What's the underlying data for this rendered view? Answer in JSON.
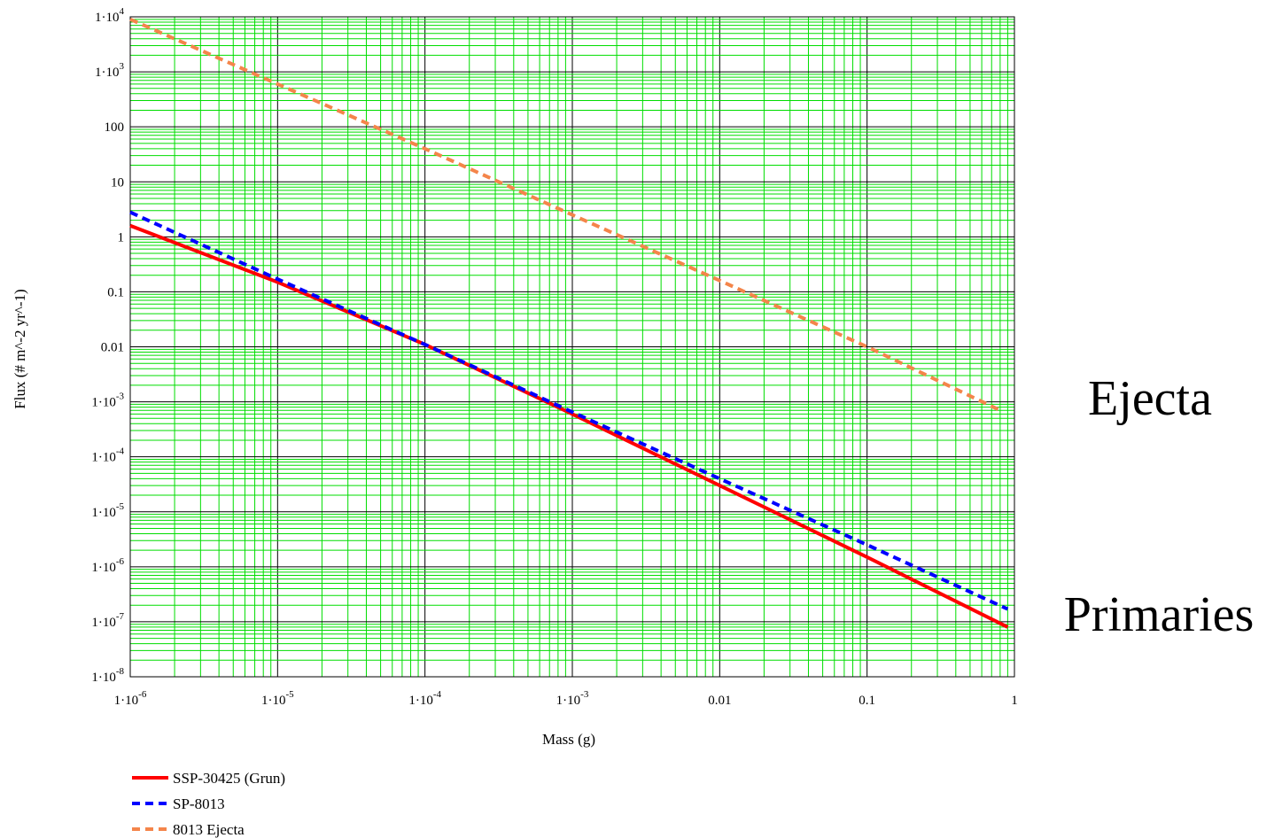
{
  "chart_data": {
    "type": "line",
    "xlabel": "Mass (g)",
    "ylabel": "Flux (# m^-2 yr^-1)",
    "xscale": "log",
    "yscale": "log",
    "xlim": [
      1e-06,
      1
    ],
    "ylim": [
      1e-08,
      10000.0
    ],
    "grid": true,
    "x_ticks": [
      {
        "base": "1·10",
        "exp": "-6",
        "text": ""
      },
      {
        "base": "1·10",
        "exp": "-5",
        "text": ""
      },
      {
        "base": "1·10",
        "exp": "-4",
        "text": ""
      },
      {
        "base": "1·10",
        "exp": "-3",
        "text": ""
      },
      {
        "base": "",
        "exp": "",
        "text": "0.01"
      },
      {
        "base": "",
        "exp": "",
        "text": "0.1"
      },
      {
        "base": "",
        "exp": "",
        "text": "1"
      }
    ],
    "y_ticks": [
      {
        "base": "1·10",
        "exp": "4",
        "text": ""
      },
      {
        "base": "1·10",
        "exp": "3",
        "text": ""
      },
      {
        "base": "",
        "exp": "",
        "text": "100"
      },
      {
        "base": "",
        "exp": "",
        "text": "10"
      },
      {
        "base": "",
        "exp": "",
        "text": "1"
      },
      {
        "base": "",
        "exp": "",
        "text": "0.1"
      },
      {
        "base": "",
        "exp": "",
        "text": "0.01"
      },
      {
        "base": "1·10",
        "exp": "-3",
        "text": ""
      },
      {
        "base": "1·10",
        "exp": "-4",
        "text": ""
      },
      {
        "base": "1·10",
        "exp": "-5",
        "text": ""
      },
      {
        "base": "1·10",
        "exp": "-6",
        "text": ""
      },
      {
        "base": "1·10",
        "exp": "-7",
        "text": ""
      },
      {
        "base": "1·10",
        "exp": "-8",
        "text": ""
      }
    ],
    "series": [
      {
        "name": "SSP-30425 (Grun)",
        "color": "#ff0000",
        "style": "solid",
        "x": [
          1e-06,
          1e-05,
          0.0001,
          0.001,
          0.01,
          0.1,
          0.9
        ],
        "y": [
          1.6,
          0.15,
          0.011,
          0.0006,
          3e-05,
          1.5e-06,
          8e-08
        ]
      },
      {
        "name": "SP-8013",
        "color": "#0000ff",
        "style": "dashed",
        "x": [
          1e-06,
          1e-05,
          0.0001,
          0.001,
          0.01,
          0.1,
          0.9
        ],
        "y": [
          2.8,
          0.17,
          0.011,
          0.00065,
          4e-05,
          2.5e-06,
          1.7e-07
        ]
      },
      {
        "name": "8013 Ejecta",
        "color": "#f4854a",
        "style": "dashed",
        "x": [
          1e-06,
          1e-05,
          0.0001,
          0.001,
          0.01,
          0.1,
          0.8
        ],
        "y": [
          9000,
          600,
          40,
          2.5,
          0.16,
          0.01,
          0.0007
        ]
      }
    ],
    "legend_position": "bottom-left",
    "annotations": [
      "Ejecta",
      "Primaries"
    ]
  }
}
